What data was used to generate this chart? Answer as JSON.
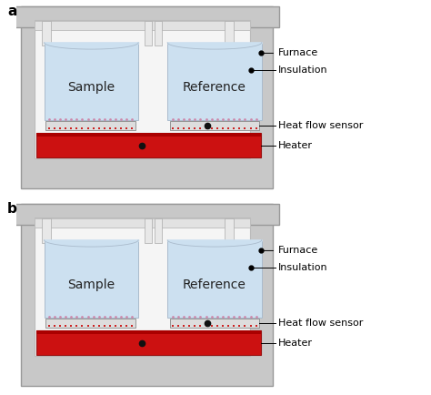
{
  "bg_color": "#c8c8c8",
  "outer_edge": "#999999",
  "inner_white": "#f5f5f5",
  "inner_edge": "#bbbbbb",
  "cup_fill": "#cce0f0",
  "cup_edge": "#aabbcc",
  "heater_color": "#cc1111",
  "heater_edge": "#991111",
  "sensor_frame_fill": "#dddddd",
  "sensor_frame_edge": "#888888",
  "sensor_pink": "#cc88aa",
  "sensor_red": "#cc2222",
  "pillar_fill": "#e8e8e8",
  "pillar_edge": "#aaaaaa",
  "dot_color": "#111111",
  "label_furnace": "Furnace",
  "label_insulation": "Insulation",
  "label_hfs": "Heat flow sensor",
  "label_heater": "Heater",
  "label_sample": "Sample",
  "label_reference": "Reference",
  "label_a": "a",
  "label_b": "b",
  "text_fontsize": 8,
  "label_fontsize": 10,
  "sublabel_fontsize": 11
}
